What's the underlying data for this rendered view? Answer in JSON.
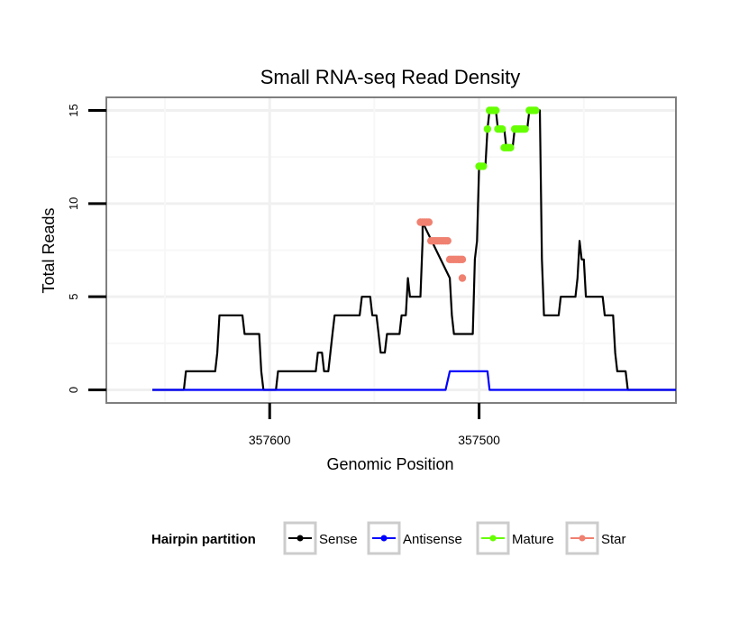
{
  "chart_data": {
    "type": "line",
    "title": "Small RNA-seq Read Density",
    "xlabel": "Genomic Position",
    "ylabel": "Total Reads",
    "x_reversed": true,
    "xlim": [
      357406,
      357678
    ],
    "ylim": [
      -0.7,
      15.7
    ],
    "x_ticks": [
      357600,
      357500
    ],
    "x_tick_labels": [
      "357600",
      "357500"
    ],
    "y_ticks": [
      0,
      5,
      10,
      15
    ],
    "y_tick_labels": [
      "0",
      "5",
      "10",
      "15"
    ],
    "grid": true,
    "legend_position": "bottom",
    "legend_title": "Hairpin partition",
    "series": [
      {
        "name": "Sense",
        "color": "#000000",
        "style": "line",
        "points": [
          [
            357656,
            0
          ],
          [
            357641,
            0
          ],
          [
            357640,
            1
          ],
          [
            357626,
            1
          ],
          [
            357625,
            2
          ],
          [
            357624,
            4
          ],
          [
            357613,
            4
          ],
          [
            357612,
            3
          ],
          [
            357605,
            3
          ],
          [
            357604,
            1
          ],
          [
            357603,
            0
          ],
          [
            357597,
            0
          ],
          [
            357596,
            1
          ],
          [
            357578,
            1
          ],
          [
            357577,
            2
          ],
          [
            357575,
            2
          ],
          [
            357574,
            1
          ],
          [
            357572,
            1
          ],
          [
            357571,
            2
          ],
          [
            357570,
            3
          ],
          [
            357569,
            4
          ],
          [
            357557,
            4
          ],
          [
            357556,
            5
          ],
          [
            357552,
            5
          ],
          [
            357551,
            4
          ],
          [
            357549,
            4
          ],
          [
            357548,
            3
          ],
          [
            357547,
            2
          ],
          [
            357545,
            2
          ],
          [
            357544,
            3
          ],
          [
            357538,
            3
          ],
          [
            357537,
            4
          ],
          [
            357535,
            4
          ],
          [
            357534,
            6
          ],
          [
            357533,
            5
          ],
          [
            357528,
            5
          ],
          [
            357527,
            8
          ],
          [
            357527,
            9
          ],
          [
            357514,
            6
          ],
          [
            357513,
            4
          ],
          [
            357512,
            3
          ],
          [
            357503,
            3
          ],
          [
            357502,
            7
          ],
          [
            357501,
            8
          ],
          [
            357500,
            12
          ],
          [
            357497,
            12
          ],
          [
            357496,
            14
          ],
          [
            357495,
            15
          ],
          [
            357492,
            15
          ],
          [
            357491,
            14
          ],
          [
            357488,
            14
          ],
          [
            357487,
            13
          ],
          [
            357484,
            13
          ],
          [
            357483,
            14
          ],
          [
            357477,
            14
          ],
          [
            357476,
            15
          ],
          [
            357471,
            15
          ],
          [
            357470,
            7
          ],
          [
            357469,
            4
          ],
          [
            357462,
            4
          ],
          [
            357461,
            5
          ],
          [
            357454,
            5
          ],
          [
            357453,
            6
          ],
          [
            357452,
            8
          ],
          [
            357451,
            7
          ],
          [
            357450,
            7
          ],
          [
            357449,
            5
          ],
          [
            357441,
            5
          ],
          [
            357440,
            4
          ],
          [
            357436,
            4
          ],
          [
            357435,
            2
          ],
          [
            357434,
            1
          ],
          [
            357430,
            1
          ],
          [
            357429,
            0
          ],
          [
            357406,
            0
          ]
        ]
      },
      {
        "name": "Antisense",
        "color": "#0000ff",
        "style": "line",
        "points": [
          [
            357656,
            0
          ],
          [
            357516,
            0
          ],
          [
            357514,
            1
          ],
          [
            357496,
            1
          ],
          [
            357495,
            0
          ],
          [
            357406,
            0
          ]
        ]
      },
      {
        "name": "Mature",
        "color": "#66ff00",
        "style": "points",
        "points": [
          [
            357500,
            12
          ],
          [
            357499,
            12
          ],
          [
            357498,
            12
          ],
          [
            357496,
            14
          ],
          [
            357495,
            15
          ],
          [
            357494,
            15
          ],
          [
            357493,
            15
          ],
          [
            357492,
            15
          ],
          [
            357491,
            14
          ],
          [
            357490,
            14
          ],
          [
            357489,
            14
          ],
          [
            357488,
            13
          ],
          [
            357487,
            13
          ],
          [
            357486,
            13
          ],
          [
            357485,
            13
          ],
          [
            357483,
            14
          ],
          [
            357482,
            14
          ],
          [
            357481,
            14
          ],
          [
            357480,
            14
          ],
          [
            357479,
            14
          ],
          [
            357478,
            14
          ],
          [
            357476,
            15
          ],
          [
            357475,
            15
          ],
          [
            357474,
            15
          ],
          [
            357473,
            15
          ]
        ]
      },
      {
        "name": "Star",
        "color": "#f08070",
        "style": "points",
        "points": [
          [
            357528,
            9
          ],
          [
            357527,
            9
          ],
          [
            357526,
            9
          ],
          [
            357525,
            9
          ],
          [
            357524,
            9
          ],
          [
            357523,
            8
          ],
          [
            357522,
            8
          ],
          [
            357521,
            8
          ],
          [
            357520,
            8
          ],
          [
            357519,
            8
          ],
          [
            357518,
            8
          ],
          [
            357517,
            8
          ],
          [
            357516,
            8
          ],
          [
            357515,
            8
          ],
          [
            357514,
            7
          ],
          [
            357513,
            7
          ],
          [
            357512,
            7
          ],
          [
            357511,
            7
          ],
          [
            357510,
            7
          ],
          [
            357509,
            7
          ],
          [
            357508,
            7
          ],
          [
            357508,
            6
          ]
        ]
      }
    ]
  }
}
